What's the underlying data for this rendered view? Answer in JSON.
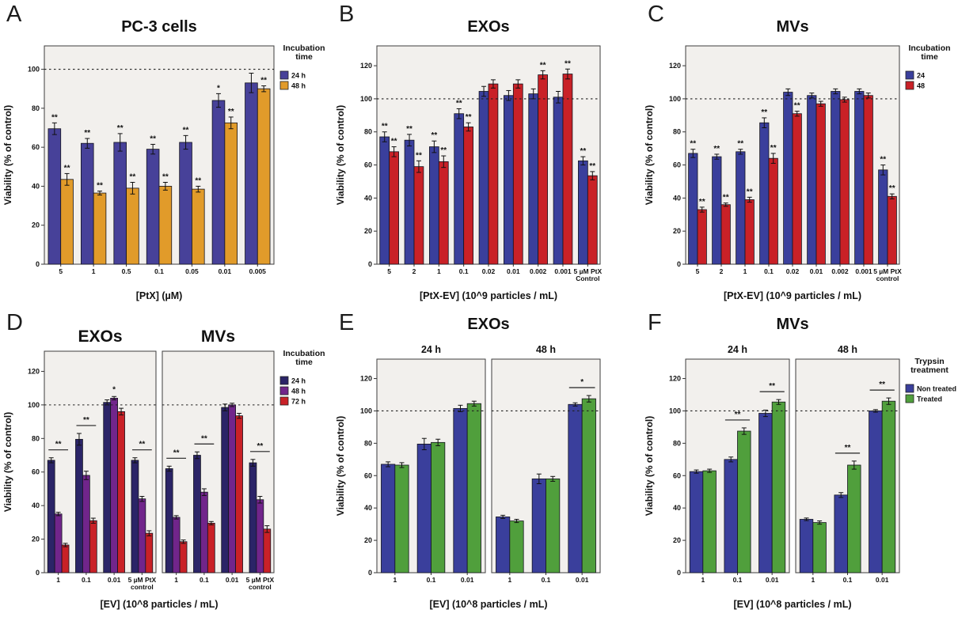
{
  "panels": [
    {
      "label": "A"
    },
    {
      "label": "B"
    },
    {
      "label": "C"
    },
    {
      "label": "D"
    },
    {
      "label": "E"
    },
    {
      "label": "F"
    }
  ],
  "chart_data": [
    {
      "id": "A",
      "type": "bar",
      "title": "PC-3 cells",
      "xlabel": "[PtX] (µM)",
      "ylabel": "Viability (% of control)",
      "ymax": 112,
      "yticks": [
        0,
        20,
        40,
        60,
        80,
        100
      ],
      "refline": 100,
      "grid": false,
      "legend": {
        "title": [
          "Incubation",
          "time"
        ],
        "position": "right",
        "entries": [
          {
            "label": "24 h",
            "color": "#474199"
          },
          {
            "label": "48 h",
            "color": "#e19b2a"
          }
        ]
      },
      "facets": [
        {
          "label": "",
          "categories": [
            "5",
            "1",
            "0.5",
            "0.1",
            "0.05",
            "0.01",
            "0.005"
          ],
          "series": [
            {
              "name": "24 h",
              "color": "#474199",
              "values": [
                69.5,
                62,
                62.5,
                59,
                62.5,
                84,
                93
              ],
              "errors": [
                3,
                2.5,
                4.5,
                2.5,
                3.5,
                3.5,
                5
              ],
              "sigs": [
                "**",
                "**",
                "**",
                "**",
                "**",
                "*",
                ""
              ]
            },
            {
              "name": "48 h",
              "color": "#e19b2a",
              "values": [
                43.5,
                36.5,
                39,
                40,
                38.5,
                72.5,
                90
              ],
              "errors": [
                3,
                1,
                3,
                2,
                1.5,
                3,
                1.5
              ],
              "sigs": [
                "**",
                "**",
                "**",
                "**",
                "**",
                "**",
                "**"
              ]
            }
          ]
        }
      ]
    },
    {
      "id": "B",
      "type": "bar",
      "title": "EXOs",
      "xlabel": "[PtX-EV] (10^9 particles / mL)",
      "ylabel": "Viability (% of control)",
      "ymax": 132,
      "yticks": [
        0,
        20,
        40,
        60,
        80,
        100,
        120
      ],
      "refline": 100,
      "grid": false,
      "facets": [
        {
          "label": "",
          "categories": [
            "5",
            "2",
            "1",
            "0.1",
            "0.02",
            "0.01",
            "0.002",
            "0.001",
            "5 µM PtX|Control"
          ],
          "series": [
            {
              "name": "24 h",
              "color": "#3a3f9c",
              "values": [
                77,
                75,
                71,
                91,
                104.5,
                102,
                103,
                101,
                62.5
              ],
              "errors": [
                3,
                3.5,
                3.5,
                3,
                3,
                3,
                3,
                3.5,
                2.5
              ],
              "sigs": [
                "**",
                "**",
                "**",
                "**",
                "",
                "",
                "",
                "",
                "**"
              ]
            },
            {
              "name": "48 h",
              "color": "#c92127",
              "values": [
                68,
                59,
                62,
                83,
                109,
                109,
                114.5,
                115,
                53.5
              ],
              "errors": [
                3,
                3.5,
                3.5,
                2.5,
                2.5,
                2.5,
                2.5,
                3,
                2.5
              ],
              "sigs": [
                "**",
                "**",
                "**",
                "**",
                "",
                "",
                "**",
                "**",
                "**"
              ]
            }
          ]
        }
      ]
    },
    {
      "id": "C",
      "type": "bar",
      "title": "MVs",
      "xlabel": "[PtX-EV] (10^9 particles / mL)",
      "ylabel": "Viability (% of control)",
      "ymax": 132,
      "yticks": [
        0,
        20,
        40,
        60,
        80,
        100,
        120
      ],
      "refline": 100,
      "grid": false,
      "legend": {
        "title": [
          "Incubation",
          "time"
        ],
        "position": "right",
        "entries": [
          {
            "label": "24",
            "color": "#3a3f9c"
          },
          {
            "label": "48",
            "color": "#c92127"
          }
        ]
      },
      "facets": [
        {
          "label": "",
          "categories": [
            "5",
            "2",
            "1",
            "0.1",
            "0.02",
            "0.01",
            "0.002",
            "0.001",
            "5 µM PtX|control"
          ],
          "series": [
            {
              "name": "24",
              "color": "#3a3f9c",
              "values": [
                67,
                65,
                68,
                85.5,
                104,
                102,
                104.5,
                104.5,
                57
              ],
              "errors": [
                2.5,
                1.5,
                1.5,
                3,
                2,
                1.5,
                1.5,
                1.5,
                3
              ],
              "sigs": [
                "**",
                "**",
                "**",
                "**",
                "",
                "",
                "",
                "",
                "**"
              ]
            },
            {
              "name": "48",
              "color": "#c92127",
              "values": [
                33,
                36,
                39,
                64,
                91,
                97,
                99.5,
                102,
                41
              ],
              "errors": [
                1.5,
                1,
                1.5,
                3,
                1.5,
                1.5,
                1.5,
                1.5,
                1.5
              ],
              "sigs": [
                "**",
                "**",
                "**",
                "**",
                "**",
                "",
                "",
                "",
                "**"
              ]
            }
          ]
        }
      ]
    },
    {
      "id": "D",
      "type": "bar",
      "title": "",
      "facet_label_large": true,
      "xlabel": "[EV] (10^8 particles / mL)",
      "ylabel": "Viability (% of control)",
      "ymax": 132,
      "yticks": [
        0,
        20,
        40,
        60,
        80,
        100,
        120
      ],
      "refline": 100,
      "grid": false,
      "legend": {
        "title": [
          "Incubation",
          "time"
        ],
        "position": "right",
        "entries": [
          {
            "label": "24 h",
            "color": "#2b2467"
          },
          {
            "label": "48 h",
            "color": "#71258b"
          },
          {
            "label": "72 h",
            "color": "#c92127"
          }
        ]
      },
      "facets": [
        {
          "label": "EXOs",
          "categories": [
            "1",
            "0.1",
            "0.01",
            "5 µM PtX|control"
          ],
          "series": [
            {
              "name": "24 h",
              "color": "#2b2467",
              "values": [
                67,
                79.5,
                101.5,
                67
              ],
              "errors": [
                1.5,
                3.5,
                1.5,
                1.5
              ]
            },
            {
              "name": "48 h",
              "color": "#71258b",
              "values": [
                35,
                58,
                104,
                44
              ],
              "errors": [
                1,
                2.5,
                1,
                1.5
              ]
            },
            {
              "name": "72 h",
              "color": "#c92127",
              "values": [
                16.5,
                31,
                96,
                23.5
              ],
              "errors": [
                1,
                1.5,
                2,
                1.5
              ]
            }
          ],
          "group_sigs": [
            {
              "index": 0,
              "text": "**",
              "line": true
            },
            {
              "index": 1,
              "text": "**",
              "line": true
            },
            {
              "index": 2,
              "text": "*",
              "line": false
            },
            {
              "index": 3,
              "text": "**",
              "line": true
            }
          ]
        },
        {
          "label": "MVs",
          "categories": [
            "1",
            "0.1",
            "0.01",
            "5 µM PtX|control"
          ],
          "series": [
            {
              "name": "24 h",
              "color": "#2b2467",
              "values": [
                62,
                70,
                98.5,
                65.5
              ],
              "errors": [
                1.5,
                2,
                2,
                2
              ]
            },
            {
              "name": "48 h",
              "color": "#71258b",
              "values": [
                33,
                48,
                100,
                43.5
              ],
              "errors": [
                1,
                2,
                1,
                2
              ]
            },
            {
              "name": "72 h",
              "color": "#c92127",
              "values": [
                18.5,
                29.5,
                93.5,
                26
              ],
              "errors": [
                1,
                1,
                1.5,
                2
              ]
            }
          ],
          "group_sigs": [
            {
              "index": 0,
              "text": "**",
              "line": true
            },
            {
              "index": 1,
              "text": "**",
              "line": true
            },
            {
              "index": 3,
              "text": "**",
              "line": true
            }
          ]
        }
      ]
    },
    {
      "id": "E",
      "type": "bar",
      "title": "EXOs",
      "xlabel": "[EV] (10^8 particles / mL)",
      "ylabel": "Viability (% of control)",
      "ymax": 132,
      "yticks": [
        0,
        20,
        40,
        60,
        80,
        100,
        120
      ],
      "refline": 100,
      "grid": false,
      "facets": [
        {
          "label": "24 h",
          "categories": [
            "1",
            "0.1",
            "0.01"
          ],
          "series": [
            {
              "name": "Non treated",
              "color": "#3a3f9c",
              "values": [
                67,
                79.5,
                101.5
              ],
              "errors": [
                1.5,
                3.5,
                2
              ]
            },
            {
              "name": "Treated",
              "color": "#509f3c",
              "values": [
                66.5,
                80.5,
                104.5
              ],
              "errors": [
                1.5,
                2,
                1.5
              ]
            }
          ]
        },
        {
          "label": "48 h",
          "categories": [
            "1",
            "0.1",
            "0.01"
          ],
          "series": [
            {
              "name": "Non treated",
              "color": "#3a3f9c",
              "values": [
                34.5,
                58,
                104
              ],
              "errors": [
                1,
                3,
                1
              ]
            },
            {
              "name": "Treated",
              "color": "#509f3c",
              "values": [
                32,
                58,
                107.5
              ],
              "errors": [
                1,
                1.5,
                2
              ]
            }
          ],
          "group_sigs": [
            {
              "index": 2,
              "text": "*",
              "line": true
            }
          ]
        }
      ]
    },
    {
      "id": "F",
      "type": "bar",
      "title": "MVs",
      "xlabel": "[EV] (10^8 particles / mL)",
      "ylabel": "Viability (% of control)",
      "ymax": 132,
      "yticks": [
        0,
        20,
        40,
        60,
        80,
        100,
        120
      ],
      "refline": 100,
      "grid": false,
      "legend": {
        "title": [
          "Trypsin",
          "treatment"
        ],
        "position": "right",
        "entries": [
          {
            "label": "Non treated",
            "color": "#3a3f9c"
          },
          {
            "label": "Treated",
            "color": "#509f3c"
          }
        ]
      },
      "facets": [
        {
          "label": "24 h",
          "categories": [
            "1",
            "0.1",
            "0.01"
          ],
          "series": [
            {
              "name": "Non treated",
              "color": "#3a3f9c",
              "values": [
                62.5,
                70,
                98.5
              ],
              "errors": [
                1,
                1.5,
                2
              ]
            },
            {
              "name": "Treated",
              "color": "#509f3c",
              "values": [
                63,
                87.5,
                105.5
              ],
              "errors": [
                1,
                2,
                1.5
              ]
            }
          ],
          "group_sigs": [
            {
              "index": 1,
              "text": "**",
              "line": true
            },
            {
              "index": 2,
              "text": "**",
              "line": true
            }
          ]
        },
        {
          "label": "48 h",
          "categories": [
            "1",
            "0.1",
            "0.01"
          ],
          "series": [
            {
              "name": "Non treated",
              "color": "#3a3f9c",
              "values": [
                33,
                48,
                100
              ],
              "errors": [
                0.8,
                1.5,
                0.8
              ]
            },
            {
              "name": "Treated",
              "color": "#509f3c",
              "values": [
                31,
                66.5,
                106
              ],
              "errors": [
                1,
                2.5,
                2
              ]
            }
          ],
          "group_sigs": [
            {
              "index": 1,
              "text": "**",
              "line": true
            },
            {
              "index": 2,
              "text": "**",
              "line": true
            }
          ]
        }
      ]
    }
  ],
  "style_colors": {
    "plot_background": "#f2f0ed",
    "frame": "#3d3d3d",
    "reference_line": "#222222"
  }
}
